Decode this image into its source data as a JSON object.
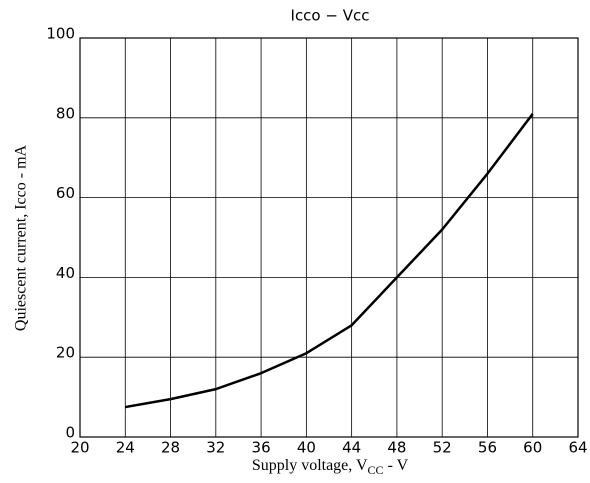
{
  "chart_data": {
    "type": "line",
    "title": "Icco − Vcc",
    "xlabel": {
      "main": "Supply voltage, V",
      "sub": "CC",
      "unit": " - V"
    },
    "ylabel": "Quiescent current, Icco - mA",
    "x": [
      24,
      28,
      32,
      36,
      40,
      44,
      48,
      52,
      56,
      60
    ],
    "series": [
      {
        "name": "Icco",
        "color": "#000000",
        "values": [
          7.5,
          9.5,
          12,
          16,
          21,
          28,
          40,
          52,
          66,
          81
        ]
      }
    ],
    "xlim": [
      20,
      64
    ],
    "xticks": [
      20,
      24,
      28,
      32,
      36,
      40,
      44,
      48,
      52,
      56,
      60,
      64
    ],
    "ylim": [
      0,
      100
    ],
    "yticks": [
      0,
      20,
      40,
      60,
      80,
      100
    ],
    "grid": true
  }
}
